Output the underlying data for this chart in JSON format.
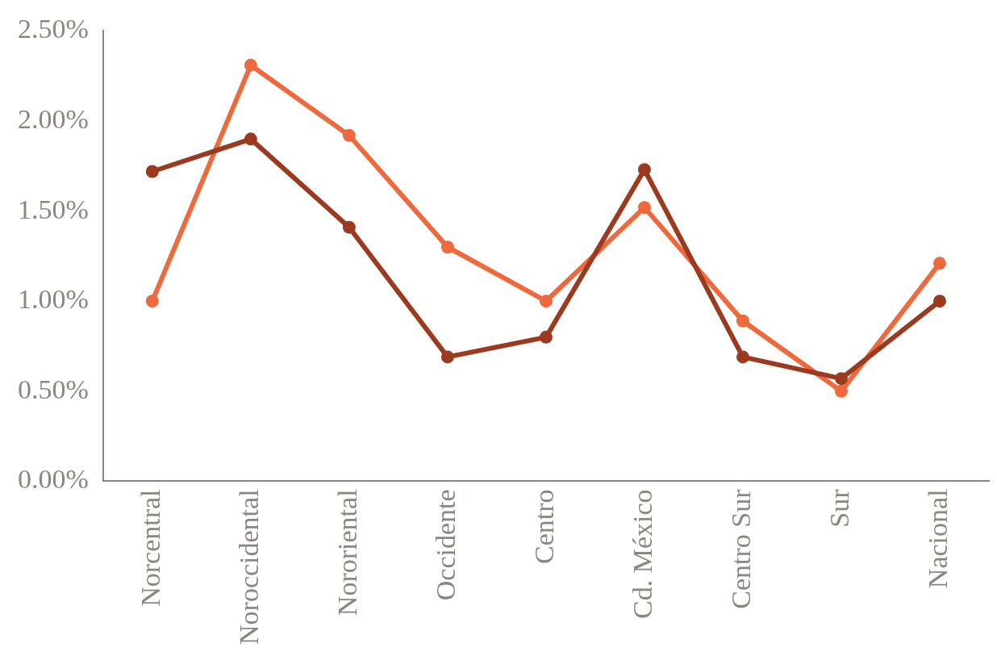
{
  "chart_data": {
    "type": "line",
    "categories": [
      "Norcentral",
      "Noroccidental",
      "Nororiental",
      "Occidente",
      "Centro",
      "Cd. México",
      "Centro Sur",
      "Sur",
      "Nacional"
    ],
    "series": [
      {
        "color": "#9b3a1e",
        "values": [
          1.72,
          1.9,
          1.41,
          0.69,
          0.8,
          1.73,
          0.69,
          0.57,
          1.0
        ]
      },
      {
        "color": "#ee6a3c",
        "values": [
          1.0,
          2.31,
          1.92,
          1.3,
          1.0,
          1.52,
          0.89,
          0.5,
          1.21
        ]
      }
    ],
    "ylim": [
      0,
      2.5
    ],
    "yticks": [
      {
        "value": 0,
        "label": "0.00%"
      },
      {
        "value": 0.5,
        "label": "0.50%"
      },
      {
        "value": 1,
        "label": "1.00%"
      },
      {
        "value": 1.5,
        "label": "1.50%"
      },
      {
        "value": 2,
        "label": "2.00%"
      },
      {
        "value": 2.5,
        "label": "2.50%"
      }
    ],
    "grid": false,
    "marker": "circle",
    "line_style": "solid"
  }
}
